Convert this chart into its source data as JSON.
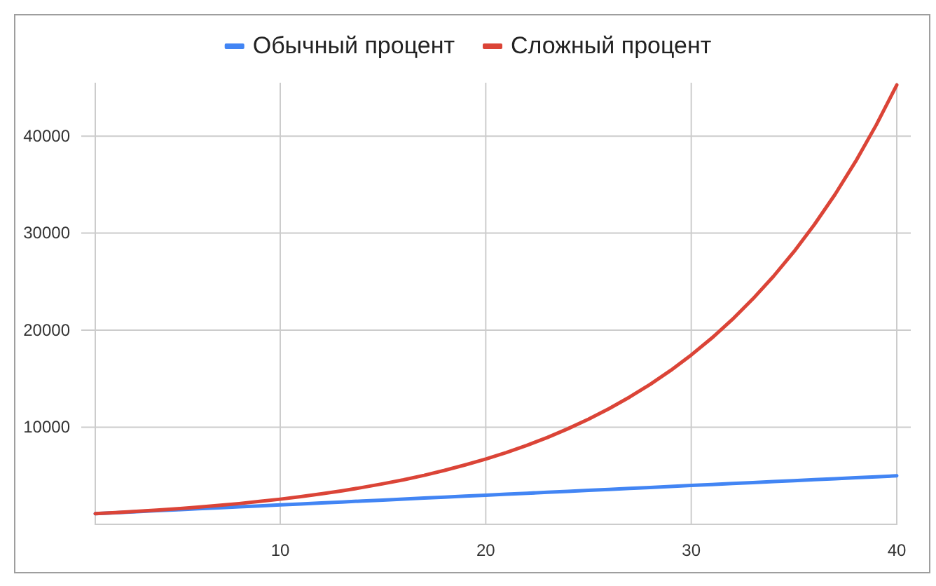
{
  "chart_data": {
    "type": "line",
    "x": [
      1,
      2,
      3,
      4,
      5,
      6,
      7,
      8,
      9,
      10,
      11,
      12,
      13,
      14,
      15,
      16,
      17,
      18,
      19,
      20,
      21,
      22,
      23,
      24,
      25,
      26,
      27,
      28,
      29,
      30,
      31,
      32,
      33,
      34,
      35,
      36,
      37,
      38,
      39,
      40
    ],
    "series": [
      {
        "name": "Обычный процент",
        "color": "#4285f4",
        "values": [
          1100,
          1200,
          1300,
          1400,
          1500,
          1600,
          1700,
          1800,
          1900,
          2000,
          2100,
          2200,
          2300,
          2400,
          2500,
          2600,
          2700,
          2800,
          2900,
          3000,
          3100,
          3200,
          3300,
          3400,
          3500,
          3600,
          3700,
          3800,
          3900,
          4000,
          4100,
          4200,
          4300,
          4400,
          4500,
          4600,
          4700,
          4800,
          4900,
          5000
        ]
      },
      {
        "name": "Сложный процент",
        "color": "#db4437",
        "values": [
          1100,
          1210,
          1330,
          1460,
          1610,
          1770,
          1950,
          2140,
          2360,
          2590,
          2850,
          3140,
          3450,
          3800,
          4180,
          4590,
          5050,
          5560,
          6120,
          6730,
          7400,
          8140,
          8950,
          9850,
          10840,
          11920,
          13110,
          14420,
          15860,
          17450,
          19190,
          21110,
          23230,
          25550,
          28100,
          30910,
          34000,
          37400,
          41140,
          45260
        ]
      }
    ],
    "xlim": [
      1,
      40
    ],
    "xticks": [
      10,
      20,
      30,
      40
    ],
    "ylim": [
      0,
      45500
    ],
    "yticks": [
      10000,
      20000,
      30000,
      40000
    ],
    "grid": true,
    "legend": "top",
    "marker": "none",
    "line_style": "solid"
  }
}
